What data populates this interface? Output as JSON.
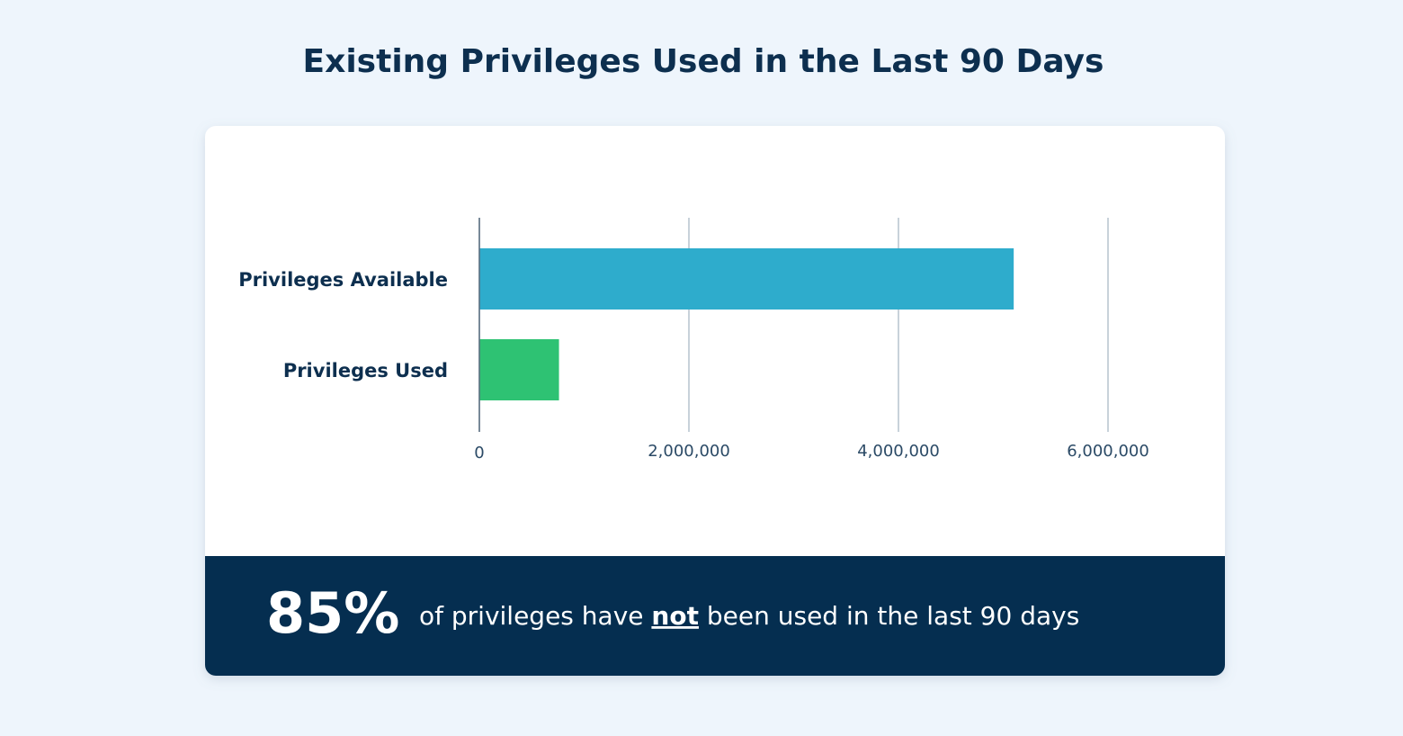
{
  "chart_data": {
    "type": "bar",
    "orientation": "horizontal",
    "title": "Existing Privileges Used in the Last 90 Days",
    "categories": [
      "Privileges Available",
      "Privileges Used"
    ],
    "values": [
      5100000,
      760000
    ],
    "colors": [
      "#2eaccc",
      "#2ec273"
    ],
    "xlim": [
      0,
      6000000
    ],
    "xticks": [
      0,
      {
        "value": 2000000,
        "label": "2,000,000"
      },
      {
        "value": 4000000,
        "label": "4,000,000"
      },
      {
        "value": 6000000,
        "label": "6,000,000"
      }
    ],
    "grid": true
  },
  "callout": {
    "figure": "85%",
    "text_before": "of privileges have",
    "emphasis": "not",
    "text_after": "been used in the last 90 days"
  }
}
